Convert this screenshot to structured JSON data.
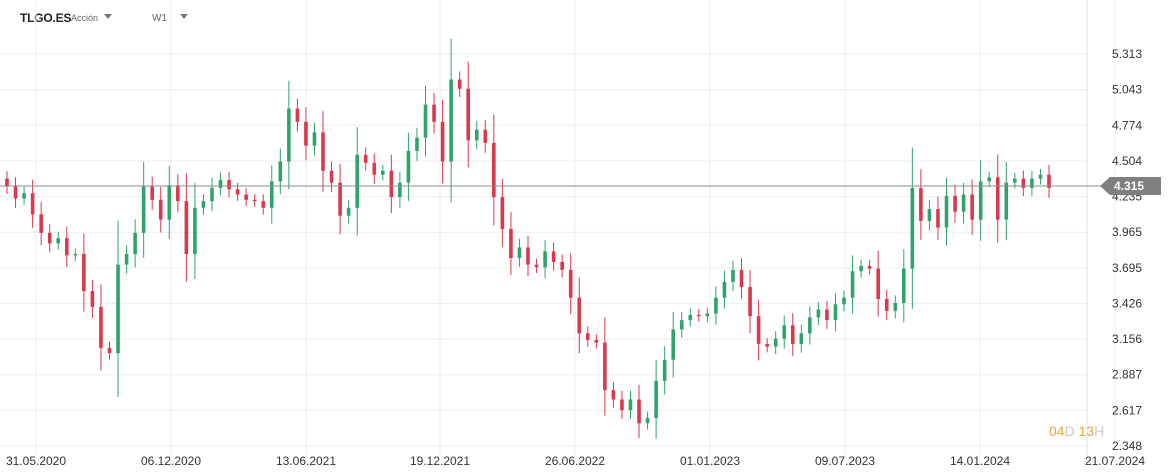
{
  "header": {
    "symbol": "TLGO.ES",
    "instrument_type": "Acción",
    "timeframe": "W1"
  },
  "countdown": {
    "days": "04",
    "days_unit": "D",
    "hours": "13",
    "hours_unit": "H"
  },
  "colors": {
    "up": "#2fa36b",
    "down": "#d9384d",
    "last_price_line": "#8c8c8c",
    "badge": "#7f7f7f",
    "grid": "#eeeeee",
    "countdown_number": "#f2a33a"
  },
  "icons": {
    "symbol_dropdown": "chevron-down-icon",
    "timeframe_dropdown": "chevron-down-icon"
  },
  "chart_data": {
    "type": "candlestick",
    "y_ticks": [
      "5.313",
      "5.043",
      "4.774",
      "4.504",
      "4.235",
      "3.965",
      "3.695",
      "3.426",
      "3.156",
      "2.887",
      "2.617",
      "2.348"
    ],
    "x_ticks": [
      "31.05.2020",
      "06.12.2020",
      "13.06.2021",
      "19.12.2021",
      "26.06.2022",
      "01.01.2023",
      "09.07.2023",
      "14.01.2024",
      "21.07.2024"
    ],
    "x_range": [
      "2020-05-31",
      "2024-07-21"
    ],
    "ylim": [
      2.348,
      5.52
    ],
    "last_price": "4.315",
    "grid": true,
    "close": [
      4.31,
      4.22,
      4.26,
      4.1,
      3.96,
      3.88,
      3.92,
      3.79,
      3.8,
      3.52,
      3.4,
      3.09,
      3.05,
      3.72,
      3.8,
      3.96,
      4.31,
      4.21,
      4.06,
      4.32,
      4.2,
      3.8,
      4.15,
      4.2,
      4.3,
      4.36,
      4.29,
      4.25,
      4.21,
      4.2,
      4.15,
      4.35,
      4.5,
      4.9,
      4.8,
      4.62,
      4.72,
      4.43,
      4.34,
      4.09,
      4.15,
      4.55,
      4.49,
      4.4,
      4.43,
      4.23,
      4.34,
      4.58,
      4.68,
      4.93,
      4.8,
      4.5,
      5.12,
      5.05,
      4.66,
      4.74,
      4.64,
      4.23,
      3.99,
      3.77,
      3.85,
      3.72,
      3.7,
      3.82,
      3.74,
      3.68,
      3.47,
      3.2,
      3.15,
      3.13,
      2.77,
      2.7,
      2.62,
      2.7,
      2.52,
      2.56,
      2.84,
      3.0,
      3.23,
      3.3,
      3.34,
      3.33,
      3.35,
      3.47,
      3.59,
      3.68,
      3.55,
      3.33,
      3.12,
      3.1,
      3.16,
      3.26,
      3.12,
      3.2,
      3.32,
      3.38,
      3.3,
      3.42,
      3.47,
      3.67,
      3.71,
      3.69,
      3.46,
      3.37,
      3.43,
      3.69,
      4.3,
      4.05,
      4.14,
      4.0,
      4.24,
      4.12,
      4.25,
      4.06,
      4.35,
      4.38,
      4.06,
      4.34,
      4.37,
      4.3,
      4.37,
      4.4,
      4.3
    ]
  }
}
